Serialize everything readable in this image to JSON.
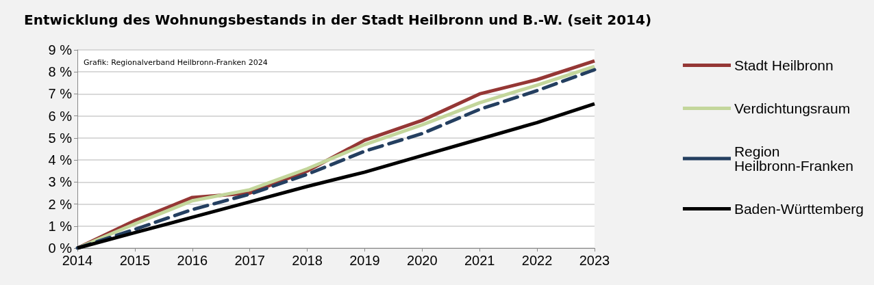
{
  "chart_data": {
    "type": "line",
    "title": "Entwicklung des Wohnungsbestands in der Stadt Heilbronn und B.-W. (seit 2014)",
    "annotations": [
      "Grafik: Regionalverband Heilbronn-Franken 2024"
    ],
    "categories": [
      "2014",
      "2015",
      "2016",
      "2017",
      "2018",
      "2019",
      "2020",
      "2021",
      "2022",
      "2023"
    ],
    "series": [
      {
        "name": "Stadt Heilbronn",
        "color": "#953735",
        "values": [
          0,
          1.25,
          2.3,
          2.5,
          3.5,
          4.9,
          5.8,
          7.0,
          7.65,
          8.5
        ]
      },
      {
        "name": "Verdichtungsraum",
        "color": "#c3d69b",
        "values": [
          0,
          1.1,
          2.15,
          2.65,
          3.6,
          4.7,
          5.6,
          6.6,
          7.4,
          8.25
        ]
      },
      {
        "name": "Region Heilbronn-Franken",
        "color": "#243f60",
        "line_style": "dashed",
        "values": [
          0,
          0.85,
          1.75,
          2.45,
          3.35,
          4.4,
          5.2,
          6.3,
          7.15,
          8.1
        ]
      },
      {
        "name": "Baden-Württemberg",
        "color": "#000000",
        "values": [
          0,
          0.7,
          1.4,
          2.1,
          2.8,
          3.45,
          4.2,
          4.95,
          5.7,
          6.55
        ]
      }
    ],
    "ylim": [
      0,
      9
    ],
    "yticks": [
      {
        "value": 0,
        "label": "0 %"
      },
      {
        "value": 1,
        "label": "1 %"
      },
      {
        "value": 2,
        "label": "2 %"
      },
      {
        "value": 3,
        "label": "3 %"
      },
      {
        "value": 4,
        "label": "4 %"
      },
      {
        "value": 5,
        "label": "5 %"
      },
      {
        "value": 6,
        "label": "6 %"
      },
      {
        "value": 7,
        "label": "7 %"
      },
      {
        "value": 8,
        "label": "8 %"
      },
      {
        "value": 9,
        "label": "9 %"
      }
    ],
    "grid": "y",
    "legend": "right",
    "marker": "none",
    "line_style": "solid"
  }
}
